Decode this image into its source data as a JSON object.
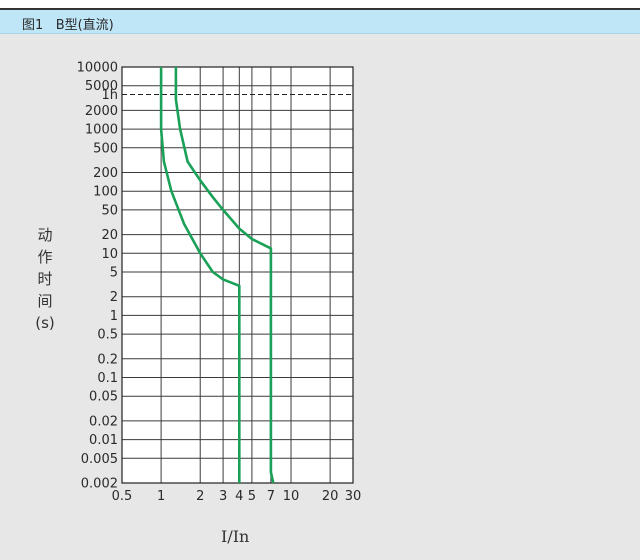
{
  "caption": {
    "figure_no": "图1",
    "text": "B型(直流)"
  },
  "chart_data": {
    "type": "line",
    "title": "",
    "xlabel": "I/In",
    "ylabel_chars": [
      "动",
      "作",
      "时",
      "间",
      "(s)"
    ],
    "x_scale": "log",
    "y_scale": "log",
    "xlim": [
      0.5,
      30
    ],
    "ylim": [
      0.002,
      10000
    ],
    "x_ticks": [
      0.5,
      1,
      2,
      3,
      4,
      5,
      7,
      10,
      20,
      30
    ],
    "x_tick_labels": [
      "0.5",
      "1",
      "2",
      "3",
      "4",
      "5",
      "7",
      "10",
      "20",
      "30"
    ],
    "y_ticks": [
      10000,
      5000,
      2000,
      1000,
      500,
      200,
      100,
      50,
      20,
      10,
      5,
      2,
      1,
      0.5,
      0.2,
      0.1,
      0.05,
      0.02,
      0.01,
      0.005,
      0.002
    ],
    "y_tick_labels": [
      "10000",
      "5000",
      "2000",
      "1000",
      "500",
      "200",
      "100",
      "50",
      "20",
      "10",
      "5",
      "2",
      "1",
      "0.5",
      "0.2",
      "0.1",
      "0.05",
      "0.02",
      "0.01",
      "0.005",
      "0.002"
    ],
    "reference_line": {
      "label": "1h",
      "y": 3600,
      "style": "dashed"
    },
    "grid": true,
    "legend": "none",
    "series": [
      {
        "points": [
          [
            1,
            10000
          ],
          [
            1,
            1000
          ],
          [
            1.05,
            300
          ],
          [
            1.2,
            100
          ],
          [
            1.5,
            30
          ],
          [
            2,
            10
          ],
          [
            2.5,
            5
          ],
          [
            3,
            3.8
          ],
          [
            4,
            3
          ],
          [
            4,
            1
          ],
          [
            4,
            0.01
          ],
          [
            4,
            0.002
          ]
        ]
      },
      {
        "points": [
          [
            1.3,
            10000
          ],
          [
            1.3,
            3000
          ],
          [
            1.4,
            1000
          ],
          [
            1.6,
            300
          ],
          [
            2,
            150
          ],
          [
            2.5,
            80
          ],
          [
            3,
            50
          ],
          [
            4,
            25
          ],
          [
            5,
            17
          ],
          [
            7,
            12
          ],
          [
            7,
            1
          ],
          [
            7,
            0.01
          ],
          [
            7,
            0.003
          ],
          [
            7.3,
            0.002
          ]
        ]
      }
    ],
    "colors": {
      "curve": "#1aa157",
      "grid": "#3a3a3a",
      "plot_bg": "#ffffff",
      "reference": "#222222"
    }
  }
}
